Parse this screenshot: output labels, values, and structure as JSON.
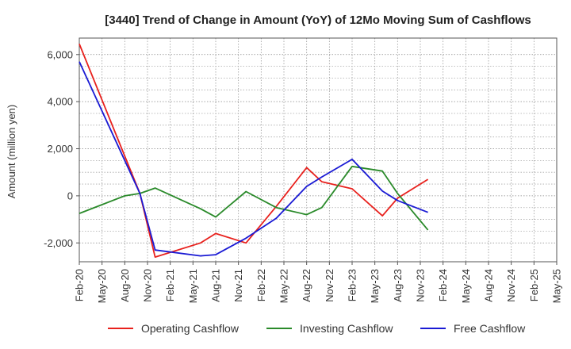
{
  "chart_data": {
    "type": "line",
    "title": "[3440]  Trend of Change in Amount (YoY) of 12Mo Moving Sum of Cashflows",
    "xlabel": "",
    "ylabel": "Amount (million yen)",
    "ylim": [
      -2800,
      6700
    ],
    "yticks": [
      -2000,
      0,
      2000,
      4000,
      6000
    ],
    "ytick_labels": [
      "-2,000",
      "0",
      "2,000",
      "4,000",
      "6,000"
    ],
    "x_tick_labels": [
      "Feb-20",
      "May-20",
      "Aug-20",
      "Nov-20",
      "Feb-21",
      "May-21",
      "Aug-21",
      "Nov-21",
      "Feb-22",
      "May-22",
      "Aug-22",
      "Nov-22",
      "Feb-23",
      "May-23",
      "Aug-23",
      "Nov-23",
      "Feb-24",
      "May-24",
      "Aug-24",
      "Nov-24",
      "Feb-25",
      "May-25"
    ],
    "grid": true,
    "legend_position": "bottom",
    "series": [
      {
        "name": "Operating Cashflow",
        "color": "#e8211d",
        "points": [
          [
            0,
            6450
          ],
          [
            4,
            100
          ],
          [
            5,
            -2600
          ],
          [
            8,
            -2000
          ],
          [
            9,
            -1600
          ],
          [
            11,
            -2000
          ],
          [
            13,
            -450
          ],
          [
            15,
            1200
          ],
          [
            16,
            600
          ],
          [
            18,
            300
          ],
          [
            20,
            -850
          ],
          [
            21,
            -100
          ],
          [
            23,
            700
          ]
        ]
      },
      {
        "name": "Investing Cashflow",
        "color": "#2a8a2a",
        "points": [
          [
            0,
            -750
          ],
          [
            3,
            0
          ],
          [
            4,
            100
          ],
          [
            5,
            330
          ],
          [
            8,
            -550
          ],
          [
            9,
            -900
          ],
          [
            11,
            180
          ],
          [
            13,
            -500
          ],
          [
            15,
            -800
          ],
          [
            16,
            -500
          ],
          [
            18,
            1250
          ],
          [
            20,
            1050
          ],
          [
            21,
            100
          ],
          [
            23,
            -1450
          ]
        ]
      },
      {
        "name": "Free Cashflow",
        "color": "#1a1ad4",
        "points": [
          [
            0,
            5700
          ],
          [
            4,
            100
          ],
          [
            5,
            -2300
          ],
          [
            8,
            -2550
          ],
          [
            9,
            -2500
          ],
          [
            11,
            -1800
          ],
          [
            13,
            -950
          ],
          [
            15,
            400
          ],
          [
            16,
            800
          ],
          [
            18,
            1550
          ],
          [
            20,
            200
          ],
          [
            21,
            -200
          ],
          [
            23,
            -700
          ]
        ]
      }
    ]
  }
}
